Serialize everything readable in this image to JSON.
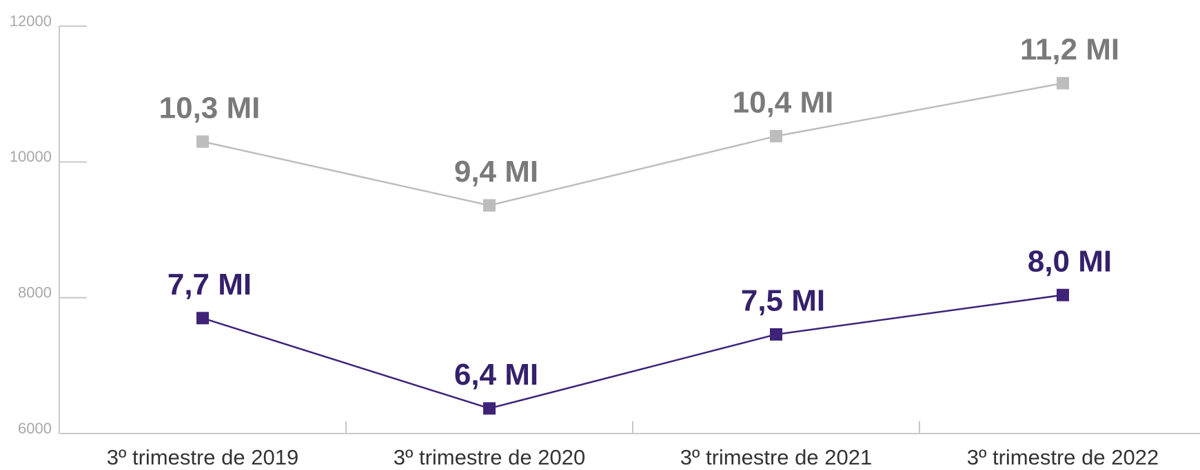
{
  "chart_data": {
    "type": "line",
    "categories": [
      "3º trimestre de 2019",
      "3º trimestre de 2020",
      "3º trimestre de 2021",
      "3º trimestre de 2022"
    ],
    "series": [
      {
        "color": "#bdbdbd",
        "label_color": "#7a7a7a",
        "values": [
          10300,
          9360,
          10380,
          11160
        ],
        "value_labels": [
          "10,3 MI",
          "9,4 MI",
          "10,4 MI",
          "11,2 MI"
        ]
      },
      {
        "color": "#3e2378",
        "label_color": "#35206b",
        "values": [
          7700,
          6370,
          7460,
          8040
        ],
        "value_labels": [
          "7,7 MI",
          "6,4 MI",
          "7,5 MI",
          "8,0 MI"
        ]
      }
    ],
    "ylim": [
      6000,
      12000
    ],
    "yticks": [
      6000,
      8000,
      10000,
      12000
    ]
  }
}
